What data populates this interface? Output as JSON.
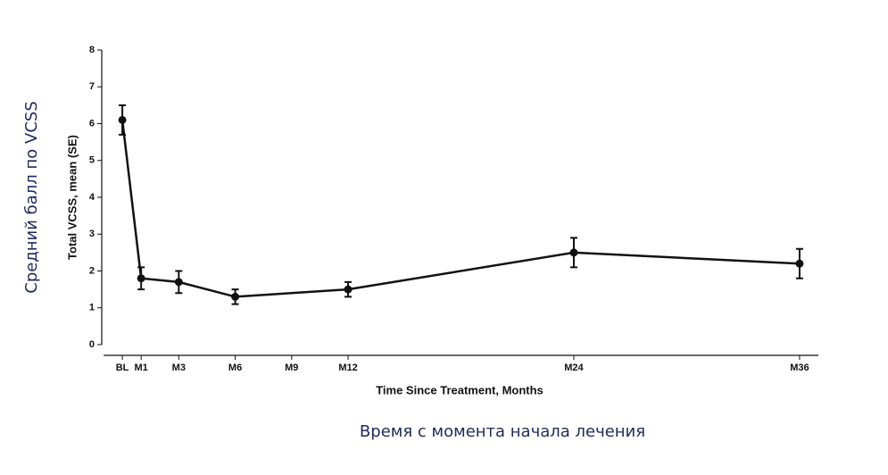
{
  "chart_data": {
    "type": "line",
    "ylabel": "Total VCSS, mean (SE)",
    "xlabel": "Time Since Treatment, Months",
    "caption_y": "Средний балл по VCSS",
    "caption_x": "Время с момента начала лечения",
    "x": [
      0,
      1,
      3,
      6,
      12,
      24,
      36
    ],
    "values": [
      6.1,
      1.8,
      1.7,
      1.3,
      1.5,
      2.5,
      2.2
    ],
    "errors": [
      0.4,
      0.3,
      0.3,
      0.2,
      0.2,
      0.4,
      0.4
    ],
    "color": "#111111",
    "xlim": [
      -1,
      37
    ],
    "xticks": [
      {
        "value": 0,
        "label": "BL"
      },
      {
        "value": 1,
        "label": "M1"
      },
      {
        "value": 3,
        "label": "M3"
      },
      {
        "value": 6,
        "label": "M6"
      },
      {
        "value": 9,
        "label": "M9"
      },
      {
        "value": 12,
        "label": "M12"
      },
      {
        "value": 24,
        "label": "M24"
      },
      {
        "value": 36,
        "label": "M36"
      }
    ],
    "ylim": [
      0,
      8
    ],
    "yticks": [
      0,
      1,
      2,
      3,
      4,
      5,
      6,
      7,
      8
    ]
  }
}
